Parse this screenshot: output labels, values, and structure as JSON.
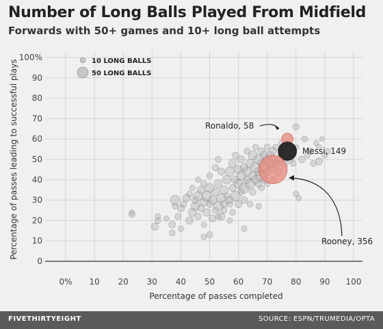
{
  "chart_data": {
    "type": "scatter",
    "title": "Number of Long Balls Played From Midfield",
    "subtitle": "Forwards with 50+ games and 10+ long ball attempts",
    "xlabel": "Percentage of passes completed",
    "ylabel": "Percentage of passes leading to successful plays",
    "xlim": [
      0,
      100
    ],
    "ylim": [
      0,
      100
    ],
    "x_ticks": [
      "0%",
      "10",
      "20",
      "30",
      "40",
      "50",
      "60",
      "70",
      "80",
      "90",
      "100"
    ],
    "y_ticks": [
      "0",
      "10",
      "20",
      "30",
      "40",
      "50",
      "60",
      "70",
      "80",
      "90",
      "100%"
    ],
    "legend": {
      "placement": "top-left",
      "entries": [
        {
          "label": "10 LONG BALLS",
          "size": 10
        },
        {
          "label": "50 LONG BALLS",
          "size": 50
        }
      ]
    },
    "colors": {
      "default": "#aaaaaa",
      "ronaldo": "#e8877a",
      "messi": "#222222",
      "rooney": "#e8877a"
    },
    "highlighted": [
      {
        "name": "Ronaldo",
        "x": 77,
        "y": 60,
        "long_balls": 58,
        "label": "Ronaldo, 58",
        "color": "ronaldo"
      },
      {
        "name": "Messi",
        "x": 77,
        "y": 54,
        "long_balls": 149,
        "label": "Messi, 149",
        "color": "messi"
      },
      {
        "name": "Rooney",
        "x": 72,
        "y": 45,
        "long_balls": 356,
        "label": "Rooney, 356",
        "color": "rooney"
      }
    ],
    "points": [
      [
        23,
        23,
        18
      ],
      [
        23,
        24,
        12
      ],
      [
        31,
        17,
        22
      ],
      [
        32,
        20,
        16
      ],
      [
        32,
        22,
        14
      ],
      [
        35,
        21,
        12
      ],
      [
        37,
        14,
        16
      ],
      [
        37,
        18,
        20
      ],
      [
        38,
        30,
        40
      ],
      [
        39,
        22,
        18
      ],
      [
        40,
        16,
        14
      ],
      [
        40,
        26,
        22
      ],
      [
        41,
        28,
        18
      ],
      [
        42,
        31,
        26
      ],
      [
        43,
        20,
        24
      ],
      [
        43,
        33,
        16
      ],
      [
        44,
        24,
        30
      ],
      [
        44,
        36,
        14
      ],
      [
        45,
        27,
        34
      ],
      [
        45,
        30,
        22
      ],
      [
        46,
        22,
        18
      ],
      [
        46,
        32,
        40
      ],
      [
        46,
        40,
        14
      ],
      [
        47,
        26,
        22
      ],
      [
        47,
        35,
        26
      ],
      [
        48,
        29,
        30
      ],
      [
        48,
        38,
        18
      ],
      [
        48,
        18,
        14
      ],
      [
        49,
        24,
        26
      ],
      [
        49,
        32,
        44
      ],
      [
        50,
        13,
        18
      ],
      [
        50,
        28,
        20
      ],
      [
        50,
        36,
        34
      ],
      [
        50,
        42,
        16
      ],
      [
        51,
        21,
        22
      ],
      [
        51,
        30,
        30
      ],
      [
        52,
        25,
        18
      ],
      [
        52,
        34,
        26
      ],
      [
        52,
        46,
        20
      ],
      [
        53,
        27,
        40
      ],
      [
        53,
        38,
        30
      ],
      [
        53,
        50,
        16
      ],
      [
        54,
        22,
        24
      ],
      [
        54,
        31,
        36
      ],
      [
        54,
        44,
        22
      ],
      [
        55,
        35,
        30
      ],
      [
        55,
        25,
        16
      ],
      [
        55,
        28,
        22
      ],
      [
        56,
        40,
        34
      ],
      [
        56,
        32,
        18
      ],
      [
        57,
        30,
        24
      ],
      [
        57,
        44,
        40
      ],
      [
        57,
        20,
        14
      ],
      [
        58,
        36,
        22
      ],
      [
        58,
        48,
        30
      ],
      [
        58,
        24,
        16
      ],
      [
        59,
        40,
        26
      ],
      [
        59,
        32,
        44
      ],
      [
        59,
        52,
        20
      ],
      [
        60,
        38,
        36
      ],
      [
        60,
        28,
        22
      ],
      [
        60,
        45,
        30
      ],
      [
        61,
        42,
        40
      ],
      [
        61,
        34,
        18
      ],
      [
        61,
        50,
        24
      ],
      [
        62,
        36,
        50
      ],
      [
        62,
        46,
        26
      ],
      [
        62,
        30,
        20
      ],
      [
        63,
        44,
        34
      ],
      [
        63,
        40,
        22
      ],
      [
        63,
        54,
        18
      ],
      [
        64,
        38,
        44
      ],
      [
        64,
        48,
        30
      ],
      [
        64,
        28,
        16
      ],
      [
        65,
        42,
        26
      ],
      [
        65,
        52,
        36
      ],
      [
        65,
        34,
        20
      ],
      [
        66,
        46,
        50
      ],
      [
        66,
        56,
        16
      ],
      [
        66,
        40,
        34
      ],
      [
        67,
        44,
        30
      ],
      [
        67,
        38,
        22
      ],
      [
        67,
        50,
        40
      ],
      [
        68,
        48,
        26
      ],
      [
        68,
        42,
        60
      ],
      [
        68,
        54,
        20
      ],
      [
        68,
        36,
        16
      ],
      [
        69,
        46,
        44
      ],
      [
        69,
        52,
        30
      ],
      [
        69,
        40,
        24
      ],
      [
        70,
        50,
        36
      ],
      [
        70,
        44,
        26
      ],
      [
        70,
        56,
        18
      ],
      [
        70,
        38,
        14
      ],
      [
        71,
        48,
        40
      ],
      [
        71,
        52,
        30
      ],
      [
        72,
        46,
        34
      ],
      [
        72,
        40,
        20
      ],
      [
        72,
        54,
        24
      ],
      [
        73,
        48,
        26
      ],
      [
        73,
        56,
        16
      ],
      [
        74,
        50,
        30
      ],
      [
        74,
        44,
        22
      ],
      [
        75,
        52,
        20
      ],
      [
        75,
        58,
        16
      ],
      [
        76,
        48,
        24
      ],
      [
        77,
        58,
        18
      ],
      [
        78,
        50,
        20
      ],
      [
        79,
        48,
        16
      ],
      [
        80,
        56,
        14
      ],
      [
        80,
        66,
        18
      ],
      [
        80,
        33,
        14
      ],
      [
        81,
        31,
        12
      ],
      [
        82,
        50,
        20
      ],
      [
        83,
        60,
        16
      ],
      [
        84,
        52,
        14
      ],
      [
        85,
        54,
        18
      ],
      [
        86,
        48,
        16
      ],
      [
        87,
        58,
        12
      ],
      [
        88,
        49,
        22
      ],
      [
        88,
        56,
        14
      ],
      [
        89,
        60,
        10
      ],
      [
        90,
        52,
        14
      ],
      [
        91,
        54,
        14
      ],
      [
        38,
        27,
        14
      ],
      [
        57,
        28,
        16
      ],
      [
        62,
        16,
        14
      ],
      [
        48,
        12,
        14
      ],
      [
        67,
        27,
        14
      ],
      [
        53,
        22,
        14
      ]
    ]
  },
  "annotations": {
    "ronaldo": "Ronaldo, 58",
    "messi": "Messi, 149",
    "rooney": "Rooney, 356"
  },
  "footer": {
    "brand": "FIVETHIRTYEIGHT",
    "source": "SOURCE: ESPN/TRUMEDIA/OPTA"
  }
}
